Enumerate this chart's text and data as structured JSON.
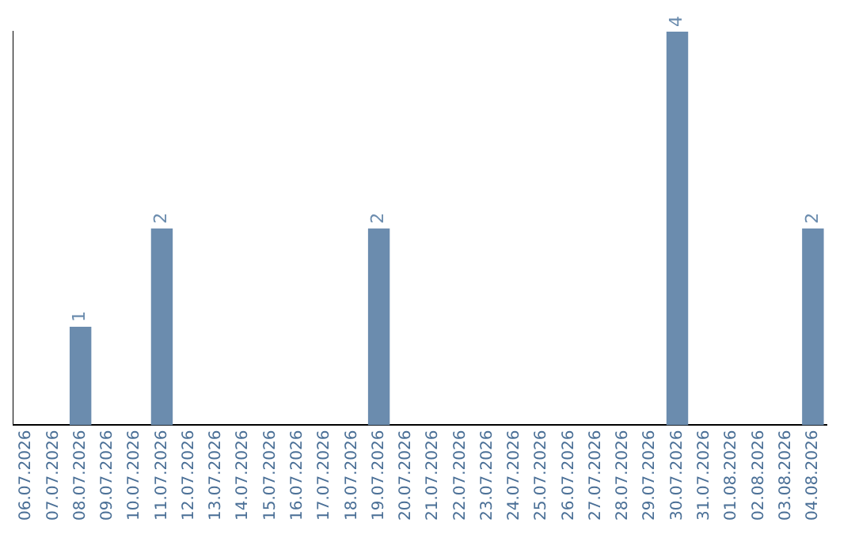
{
  "chart_data": {
    "type": "bar",
    "categories": [
      "06.07.2026",
      "07.07.2026",
      "08.07.2026",
      "09.07.2026",
      "10.07.2026",
      "11.07.2026",
      "12.07.2026",
      "13.07.2026",
      "14.07.2026",
      "15.07.2026",
      "16.07.2026",
      "17.07.2026",
      "18.07.2026",
      "19.07.2026",
      "20.07.2026",
      "21.07.2026",
      "22.07.2026",
      "23.07.2026",
      "24.07.2026",
      "25.07.2026",
      "26.07.2026",
      "27.07.2026",
      "28.07.2026",
      "29.07.2026",
      "30.07.2026",
      "31.07.2026",
      "01.08.2026",
      "02.08.2026",
      "03.08.2026",
      "04.08.2026"
    ],
    "values": [
      0,
      0,
      1,
      0,
      0,
      2,
      0,
      0,
      0,
      0,
      0,
      0,
      0,
      2,
      0,
      0,
      0,
      0,
      0,
      0,
      0,
      0,
      0,
      0,
      4,
      0,
      0,
      0,
      0,
      2
    ],
    "value_labels": [
      null,
      null,
      "1",
      null,
      null,
      "2",
      null,
      null,
      null,
      null,
      null,
      null,
      null,
      "2",
      null,
      null,
      null,
      null,
      null,
      null,
      null,
      null,
      null,
      null,
      "4",
      null,
      null,
      null,
      null,
      "2"
    ],
    "color": "#6b8cae",
    "grid": false,
    "legend": false,
    "tick_labels": "x"
  }
}
